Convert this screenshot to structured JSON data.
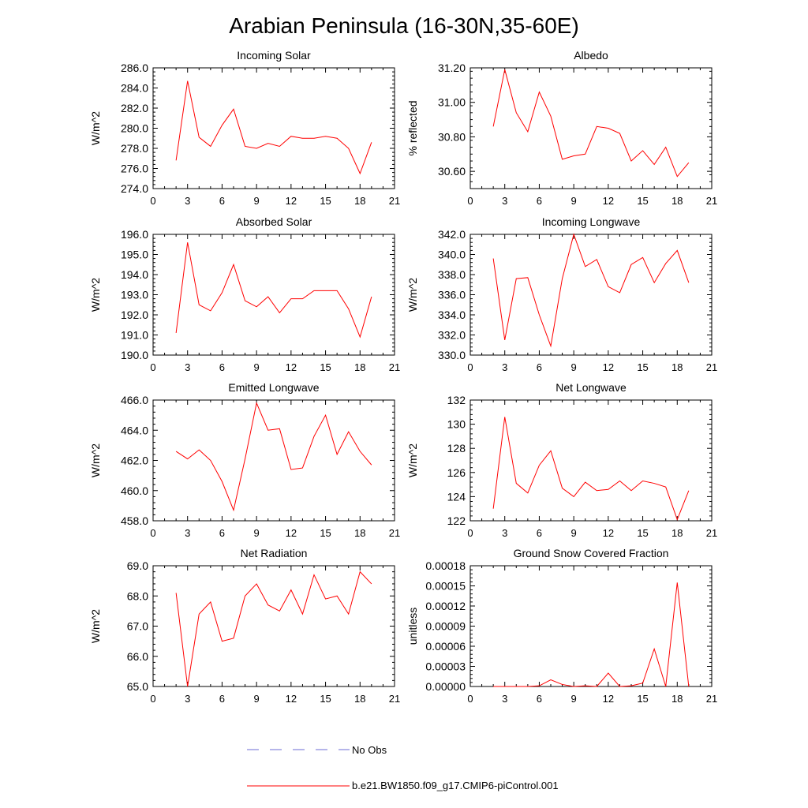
{
  "title": "Arabian Peninsula (16-30N,35-60E)",
  "legend": {
    "position": "bottom-center",
    "entries": [
      {
        "label": "No Obs",
        "color": "#6b6bd6",
        "style": "dashed"
      },
      {
        "label": "b.e21.BW1850.f09_g17.CMIP6-piControl.001",
        "color": "#ff0000",
        "style": "solid"
      }
    ]
  },
  "chart_data": [
    {
      "type": "line",
      "title": "Incoming Solar",
      "ylabel": "W/m^2",
      "xlim": [
        0,
        21
      ],
      "ylim": [
        274,
        286
      ],
      "xticks": [
        "0",
        "3",
        "6",
        "9",
        "12",
        "15",
        "18",
        "21"
      ],
      "yticks": [
        "274.0",
        "276.0",
        "278.0",
        "280.0",
        "282.0",
        "284.0",
        "286.0"
      ],
      "x": [
        2,
        3,
        4,
        5,
        6,
        7,
        8,
        9,
        10,
        11,
        12,
        13,
        14,
        15,
        16,
        17,
        18,
        19
      ],
      "series": [
        {
          "name": "b.e21.BW1850.f09_g17.CMIP6-piControl.001",
          "color": "#ff0000",
          "values": [
            276.8,
            284.7,
            279.1,
            278.2,
            280.3,
            281.9,
            278.2,
            278.0,
            278.5,
            278.2,
            279.2,
            279.0,
            279.0,
            279.2,
            279.0,
            278.0,
            275.5,
            278.6
          ]
        }
      ]
    },
    {
      "type": "line",
      "title": "Albedo",
      "ylabel": "% reflected",
      "xlim": [
        0,
        21
      ],
      "ylim": [
        30.5,
        31.2
      ],
      "xticks": [
        "0",
        "3",
        "6",
        "9",
        "12",
        "15",
        "18",
        "21"
      ],
      "yticks": [
        "30.60",
        "30.80",
        "31.00",
        "31.20"
      ],
      "x": [
        2,
        3,
        4,
        5,
        6,
        7,
        8,
        9,
        10,
        11,
        12,
        13,
        14,
        15,
        16,
        17,
        18,
        19
      ],
      "series": [
        {
          "name": "b.e21.BW1850.f09_g17.CMIP6-piControl.001",
          "color": "#ff0000",
          "values": [
            30.86,
            31.19,
            30.94,
            30.83,
            31.06,
            30.92,
            30.67,
            30.69,
            30.7,
            30.86,
            30.85,
            30.82,
            30.66,
            30.72,
            30.64,
            30.74,
            30.57,
            30.65
          ]
        }
      ]
    },
    {
      "type": "line",
      "title": "Absorbed Solar",
      "ylabel": "W/m^2",
      "xlim": [
        0,
        21
      ],
      "ylim": [
        190,
        196
      ],
      "xticks": [
        "0",
        "3",
        "6",
        "9",
        "12",
        "15",
        "18",
        "21"
      ],
      "yticks": [
        "190.0",
        "191.0",
        "192.0",
        "193.0",
        "194.0",
        "195.0",
        "196.0"
      ],
      "x": [
        2,
        3,
        4,
        5,
        6,
        7,
        8,
        9,
        10,
        11,
        12,
        13,
        14,
        15,
        16,
        17,
        18,
        19
      ],
      "series": [
        {
          "name": "b.e21.BW1850.f09_g17.CMIP6-piControl.001",
          "color": "#ff0000",
          "values": [
            191.1,
            195.6,
            192.5,
            192.2,
            193.1,
            194.5,
            192.7,
            192.4,
            192.9,
            192.1,
            192.8,
            192.8,
            193.2,
            193.2,
            193.2,
            192.3,
            190.9,
            192.9
          ]
        }
      ]
    },
    {
      "type": "line",
      "title": "Incoming Longwave",
      "ylabel": "W/m^2",
      "xlim": [
        0,
        21
      ],
      "ylim": [
        330,
        342
      ],
      "xticks": [
        "0",
        "3",
        "6",
        "9",
        "12",
        "15",
        "18",
        "21"
      ],
      "yticks": [
        "330.0",
        "332.0",
        "334.0",
        "336.0",
        "338.0",
        "340.0",
        "342.0"
      ],
      "x": [
        2,
        3,
        4,
        5,
        6,
        7,
        8,
        9,
        10,
        11,
        12,
        13,
        14,
        15,
        16,
        17,
        18,
        19
      ],
      "series": [
        {
          "name": "b.e21.BW1850.f09_g17.CMIP6-piControl.001",
          "color": "#ff0000",
          "values": [
            339.6,
            331.5,
            337.6,
            337.7,
            334.0,
            330.9,
            337.6,
            342.0,
            338.8,
            339.5,
            336.8,
            336.2,
            339.0,
            339.7,
            337.2,
            339.1,
            340.4,
            337.2
          ]
        }
      ]
    },
    {
      "type": "line",
      "title": "Emitted Longwave",
      "ylabel": "W/m^2",
      "xlim": [
        0,
        21
      ],
      "ylim": [
        458,
        466
      ],
      "xticks": [
        "0",
        "3",
        "6",
        "9",
        "12",
        "15",
        "18",
        "21"
      ],
      "yticks": [
        "458.0",
        "460.0",
        "462.0",
        "464.0",
        "466.0"
      ],
      "x": [
        2,
        3,
        4,
        5,
        6,
        7,
        8,
        9,
        10,
        11,
        12,
        13,
        14,
        15,
        16,
        17,
        18,
        19
      ],
      "series": [
        {
          "name": "b.e21.BW1850.f09_g17.CMIP6-piControl.001",
          "color": "#ff0000",
          "values": [
            462.6,
            462.1,
            462.7,
            462.0,
            460.6,
            458.7,
            462.1,
            465.8,
            464.0,
            464.1,
            461.4,
            461.5,
            463.6,
            465.0,
            462.4,
            463.9,
            462.6,
            461.7
          ]
        }
      ]
    },
    {
      "type": "line",
      "title": "Net Longwave",
      "ylabel": "W/m^2",
      "xlim": [
        0,
        21
      ],
      "ylim": [
        122,
        132
      ],
      "xticks": [
        "0",
        "3",
        "6",
        "9",
        "12",
        "15",
        "18",
        "21"
      ],
      "yticks": [
        "122",
        "124",
        "126",
        "128",
        "130",
        "132"
      ],
      "x": [
        2,
        3,
        4,
        5,
        6,
        7,
        8,
        9,
        10,
        11,
        12,
        13,
        14,
        15,
        16,
        17,
        18,
        19
      ],
      "series": [
        {
          "name": "b.e21.BW1850.f09_g17.CMIP6-piControl.001",
          "color": "#ff0000",
          "values": [
            123.0,
            130.6,
            125.1,
            124.3,
            126.6,
            127.8,
            124.7,
            124.0,
            125.2,
            124.5,
            124.6,
            125.3,
            124.5,
            125.3,
            125.1,
            124.8,
            122.1,
            124.5
          ]
        }
      ]
    },
    {
      "type": "line",
      "title": "Net Radiation",
      "ylabel": "W/m^2",
      "xlim": [
        0,
        21
      ],
      "ylim": [
        65,
        69
      ],
      "xticks": [
        "0",
        "3",
        "6",
        "9",
        "12",
        "15",
        "18",
        "21"
      ],
      "yticks": [
        "65.0",
        "66.0",
        "67.0",
        "68.0",
        "69.0"
      ],
      "x": [
        2,
        3,
        4,
        5,
        6,
        7,
        8,
        9,
        10,
        11,
        12,
        13,
        14,
        15,
        16,
        17,
        18,
        19
      ],
      "series": [
        {
          "name": "b.e21.BW1850.f09_g17.CMIP6-piControl.001",
          "color": "#ff0000",
          "values": [
            68.1,
            65.0,
            67.4,
            67.8,
            66.5,
            66.6,
            68.0,
            68.4,
            67.7,
            67.5,
            68.2,
            67.4,
            68.7,
            67.9,
            68.0,
            67.4,
            68.8,
            68.4
          ]
        }
      ]
    },
    {
      "type": "line",
      "title": "Ground Snow Covered Fraction",
      "ylabel": "unitless",
      "xlim": [
        0,
        21
      ],
      "ylim": [
        0,
        0.00018
      ],
      "xticks": [
        "0",
        "3",
        "6",
        "9",
        "12",
        "15",
        "18",
        "21"
      ],
      "yticks": [
        "0.00000",
        "0.00003",
        "0.00006",
        "0.00009",
        "0.00012",
        "0.00015",
        "0.00018"
      ],
      "x": [
        2,
        3,
        4,
        5,
        6,
        7,
        8,
        9,
        10,
        11,
        12,
        13,
        14,
        15,
        16,
        17,
        18,
        19
      ],
      "series": [
        {
          "name": "b.e21.BW1850.f09_g17.CMIP6-piControl.001",
          "color": "#ff0000",
          "values": [
            0,
            0,
            0,
            0,
            1e-06,
            1e-05,
            3e-06,
            0,
            1e-06,
            0,
            2e-05,
            0,
            1e-06,
            5e-06,
            5.6e-05,
            0,
            0.000155,
            0
          ]
        }
      ]
    }
  ]
}
